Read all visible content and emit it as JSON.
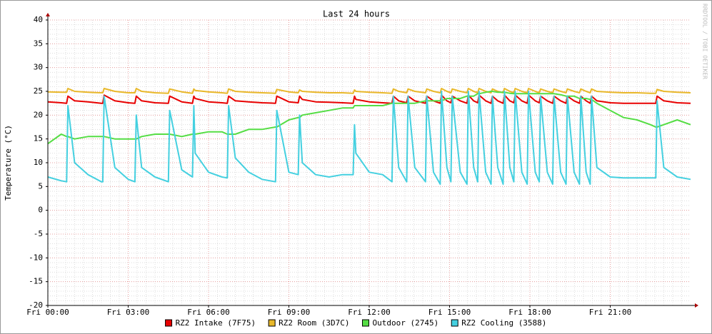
{
  "chart_data": {
    "type": "line",
    "title": "Last 24 hours",
    "y_label": "Temperature (°C)",
    "watermark": "RRDTOOL / TOBI OETIKER",
    "xlim": [
      0,
      24
    ],
    "ylim": [
      -20,
      40
    ],
    "xticks": [
      {
        "value": 0,
        "label": "Fri 00:00"
      },
      {
        "value": 3,
        "label": "Fri 03:00"
      },
      {
        "value": 6,
        "label": "Fri 06:00"
      },
      {
        "value": 9,
        "label": "Fri 09:00"
      },
      {
        "value": 12,
        "label": "Fri 12:00"
      },
      {
        "value": 15,
        "label": "Fri 15:00"
      },
      {
        "value": 18,
        "label": "Fri 18:00"
      },
      {
        "value": 21,
        "label": "Fri 21:00"
      }
    ],
    "yticks": [
      -20,
      -15,
      -10,
      -5,
      0,
      5,
      10,
      15,
      20,
      25,
      30,
      35,
      40
    ],
    "grid": true,
    "legend": "bottom",
    "x": [
      0,
      0.5,
      0.7,
      0.75,
      1,
      1.5,
      2,
      2.05,
      2.1,
      2.5,
      3,
      3.25,
      3.3,
      3.5,
      4,
      4.5,
      4.55,
      5,
      5.4,
      5.45,
      5.5,
      6,
      6.5,
      6.7,
      6.75,
      7,
      7.5,
      8,
      8.5,
      8.55,
      9,
      9.35,
      9.4,
      9.5,
      10,
      10.5,
      11,
      11.4,
      11.45,
      11.5,
      12,
      12.5,
      12.85,
      12.9,
      13.1,
      13.4,
      13.45,
      13.7,
      14.1,
      14.15,
      14.4,
      14.65,
      14.7,
      14.9,
      15.05,
      15.1,
      15.4,
      15.65,
      15.7,
      15.9,
      16.05,
      16.1,
      16.35,
      16.55,
      16.6,
      16.8,
      17,
      17.05,
      17.25,
      17.4,
      17.45,
      17.7,
      17.9,
      17.95,
      18.2,
      18.35,
      18.4,
      18.65,
      18.85,
      18.9,
      19.15,
      19.35,
      19.4,
      19.65,
      19.85,
      19.9,
      20.1,
      20.25,
      20.3,
      20.5,
      21,
      21.5,
      22,
      22.5,
      22.7,
      22.75,
      23,
      23.5,
      24
    ],
    "series": [
      {
        "name": "RZ2 Intake (7F75)",
        "color": "#e80000",
        "values": [
          22.8,
          22.6,
          22.5,
          24,
          23,
          22.8,
          22.5,
          22.5,
          24.2,
          23,
          22.6,
          22.5,
          24,
          23,
          22.6,
          22.5,
          24,
          22.8,
          22.5,
          24,
          23.5,
          22.8,
          22.6,
          22.5,
          24,
          23,
          22.8,
          22.6,
          22.5,
          24,
          22.8,
          22.6,
          24,
          23.3,
          22.8,
          22.7,
          22.6,
          22.5,
          24,
          23.3,
          22.8,
          22.6,
          22.5,
          24,
          23,
          22.6,
          24,
          23,
          22.5,
          24,
          23,
          22.5,
          24.2,
          23,
          22.6,
          24,
          23,
          22.5,
          24.2,
          23,
          22.6,
          24.2,
          23,
          22.5,
          24,
          23,
          22.5,
          24.2,
          23,
          22.6,
          24.2,
          23,
          22.5,
          24.2,
          23,
          22.6,
          24,
          23,
          22.5,
          24,
          23,
          22.5,
          24,
          23,
          22.5,
          24,
          23,
          22.5,
          24,
          23,
          22.6,
          22.5,
          22.5,
          22.5,
          22.5,
          24,
          23,
          22.6,
          22.5
        ]
      },
      {
        "name": "RZ2 Room (3D7C)",
        "color": "#e8b82a",
        "values": [
          24.9,
          24.8,
          24.8,
          25.6,
          25,
          24.8,
          24.7,
          24.7,
          25.6,
          25,
          24.7,
          24.7,
          25.6,
          25,
          24.7,
          24.6,
          25.5,
          24.9,
          24.6,
          25.5,
          25.2,
          24.9,
          24.7,
          24.6,
          25.5,
          25,
          24.8,
          24.7,
          24.6,
          25.4,
          24.9,
          24.7,
          25.3,
          25,
          24.8,
          24.7,
          24.7,
          24.6,
          25.3,
          25,
          24.8,
          24.7,
          24.6,
          25.5,
          25,
          24.7,
          25.5,
          25,
          24.7,
          25.5,
          25,
          24.7,
          25.6,
          25,
          24.7,
          25.5,
          25,
          24.7,
          25.6,
          25,
          24.7,
          25.6,
          25,
          24.7,
          25.5,
          25,
          24.7,
          25.6,
          25,
          24.7,
          25.6,
          25,
          24.7,
          25.6,
          25,
          24.7,
          25.5,
          25,
          24.7,
          25.5,
          25,
          24.7,
          25.5,
          25,
          24.7,
          25.5,
          25,
          24.7,
          25.5,
          25,
          24.8,
          24.7,
          24.7,
          24.6,
          24.6,
          25.4,
          25,
          24.8,
          24.7
        ]
      },
      {
        "name": "Outdoor (2745)",
        "color": "#55dd44",
        "values": [
          14,
          16,
          15.5,
          15.5,
          15,
          15.5,
          15.5,
          15.5,
          15.5,
          15,
          15,
          15,
          15,
          15.5,
          16,
          16,
          16,
          15.5,
          16,
          16,
          16,
          16.5,
          16.5,
          16,
          16,
          16,
          17,
          17,
          17.5,
          17.5,
          19,
          19.5,
          19.5,
          20,
          20.5,
          21,
          21.5,
          21.5,
          22,
          22,
          22,
          22,
          22.5,
          22.5,
          22.5,
          22.5,
          22.5,
          22.5,
          23,
          23,
          23,
          23,
          23,
          23.5,
          23.5,
          23.5,
          23.5,
          24,
          24,
          24,
          24.5,
          24.5,
          24.8,
          25,
          25,
          24.8,
          24.8,
          24.8,
          24.6,
          24.5,
          24.5,
          24.5,
          24.5,
          24.5,
          24.5,
          24.5,
          24.5,
          24.5,
          24.5,
          24.5,
          24.3,
          24,
          24,
          24,
          23.5,
          23.5,
          23.5,
          23.3,
          23.3,
          22.5,
          21,
          19.5,
          19,
          18,
          17.5,
          17.5,
          18,
          19,
          18
        ]
      },
      {
        "name": "RZ2 Cooling (3588)",
        "color": "#44d0e0",
        "values": [
          7,
          6.2,
          6,
          22,
          10,
          7.5,
          6,
          6,
          24,
          9,
          6.5,
          6,
          20,
          9,
          7,
          6,
          21,
          8.5,
          7,
          22,
          12,
          8,
          7,
          6.8,
          22,
          11,
          8,
          6.5,
          6,
          21,
          8,
          7.5,
          20,
          10,
          7.5,
          7,
          7.5,
          7.5,
          18,
          12,
          8,
          7.5,
          6,
          24,
          9,
          6,
          24,
          9,
          6,
          24,
          8,
          5.5,
          25,
          9,
          6,
          24,
          8,
          5.5,
          25,
          9,
          6,
          25,
          8,
          5.5,
          24,
          9,
          5.5,
          25,
          9,
          6,
          25,
          8,
          5.5,
          25,
          8,
          6,
          24,
          8,
          5.5,
          24,
          8,
          5.5,
          24,
          8,
          5.5,
          24,
          8,
          5.5,
          24,
          9,
          7,
          6.8,
          6.8,
          6.8,
          6.8,
          23,
          9,
          7,
          6.5
        ]
      }
    ]
  }
}
